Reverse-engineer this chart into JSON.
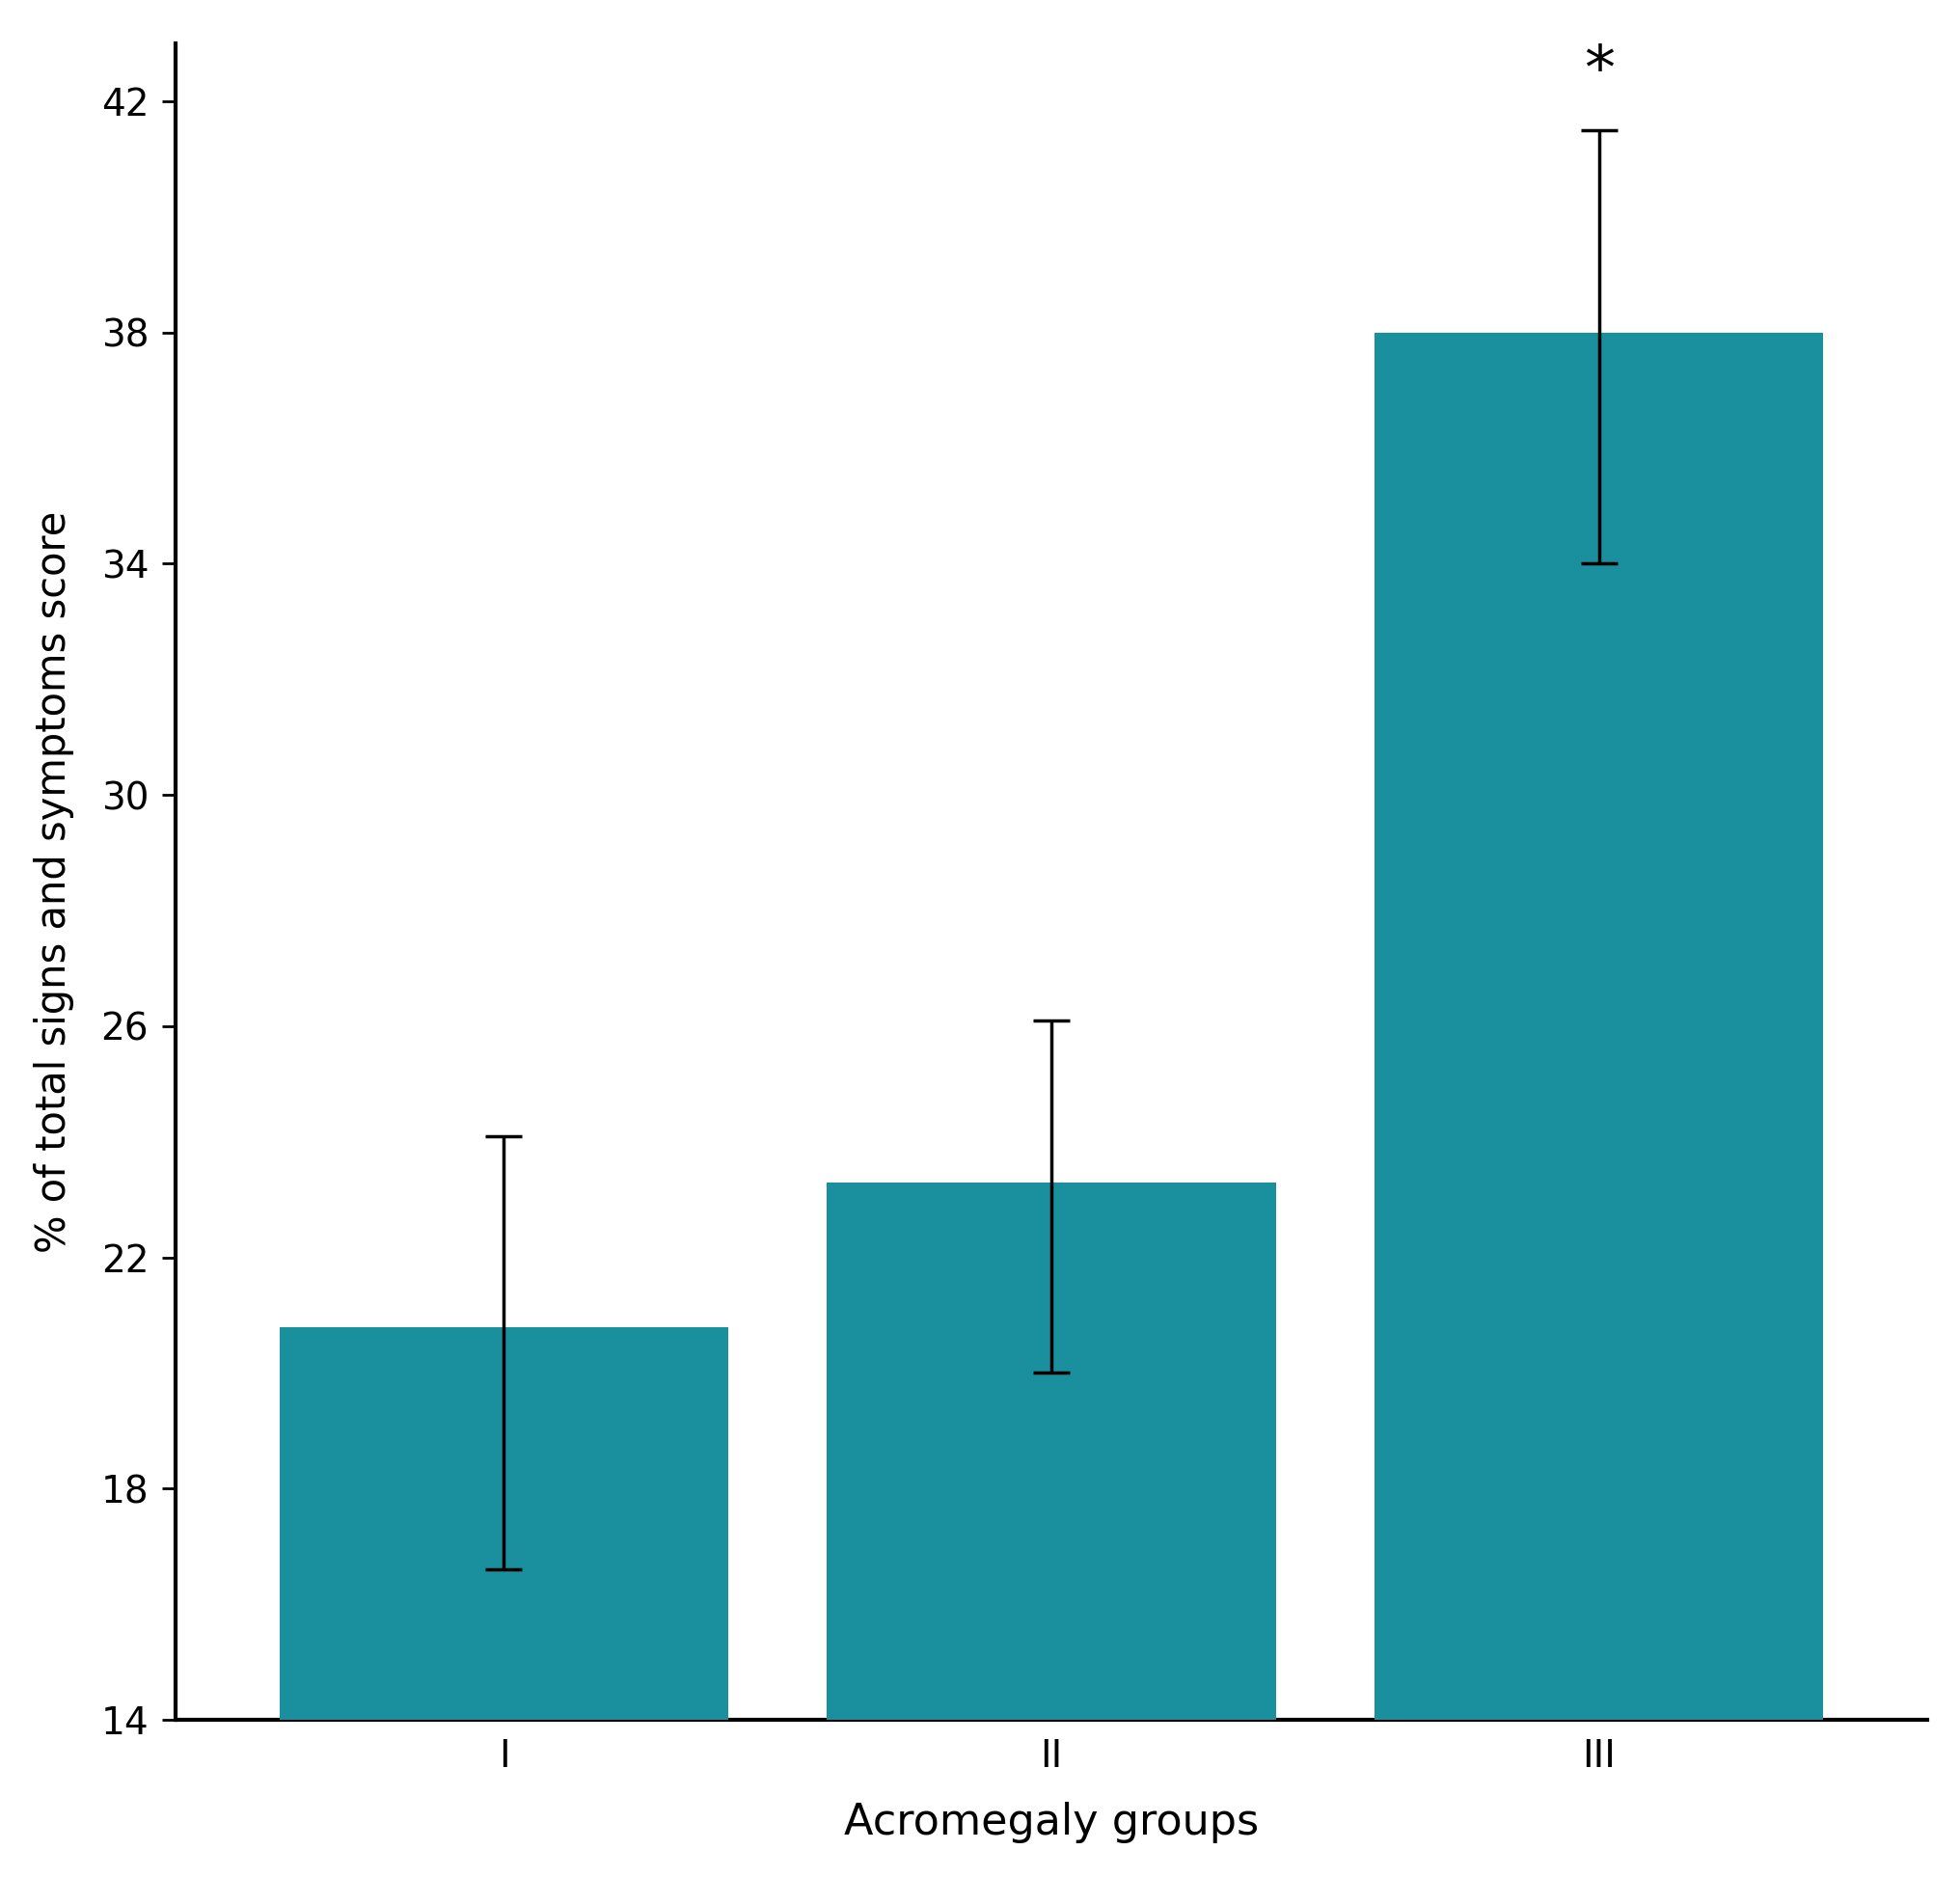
{
  "categories": [
    "I",
    "II",
    "III"
  ],
  "values": [
    20.8,
    23.3,
    38.0
  ],
  "errors_upper": [
    3.3,
    2.8,
    3.5
  ],
  "errors_lower": [
    4.2,
    3.3,
    4.0
  ],
  "bar_color": "#1a8f9e",
  "ylabel": "% of total signs and symptoms score",
  "xlabel": "Acromegaly groups",
  "ylim": [
    14,
    43
  ],
  "yticks": [
    14,
    18,
    22,
    26,
    30,
    34,
    38,
    42
  ],
  "annotation_bar": 2,
  "annotation_text": "*",
  "annotation_fontsize": 46,
  "ylabel_fontsize": 30,
  "xlabel_fontsize": 32,
  "tick_fontsize": 28,
  "bar_width": 0.82,
  "capsize": 14,
  "error_linewidth": 2.5,
  "background_color": "#ffffff",
  "spine_linewidth": 3.0
}
